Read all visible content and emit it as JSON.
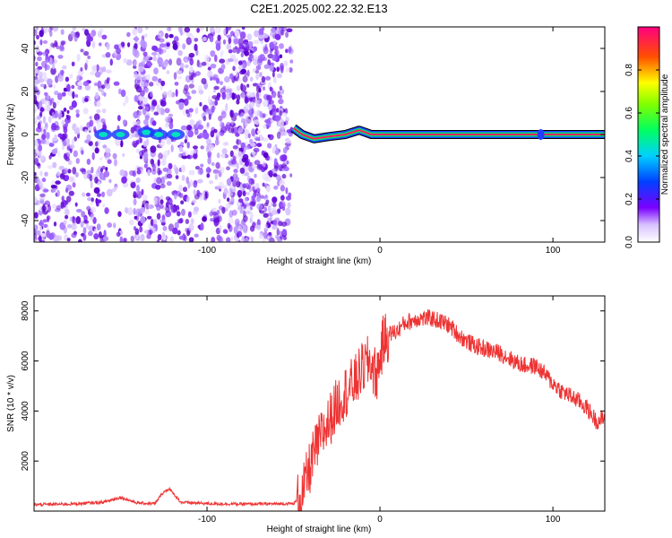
{
  "figure_title": "C2E1.2025.002.22.32.E13",
  "colorbar": {
    "label": "Normalized spectral amplitude",
    "ticks": [
      "0.0",
      "0.2",
      "0.4",
      "0.6",
      "0.8"
    ]
  },
  "chart_data": [
    {
      "type": "heatmap",
      "title": "",
      "xlabel": "Height of straight line (km)",
      "ylabel": "Frequency (Hz)",
      "xlim": [
        -200,
        130
      ],
      "ylim": [
        -50,
        50
      ],
      "x_ticks": [
        -100,
        0,
        100
      ],
      "y_ticks": [
        -40,
        -20,
        0,
        20,
        40
      ],
      "x_tick_labels": [
        "-100",
        "0",
        "100"
      ],
      "y_tick_labels": [
        "-40",
        "-20",
        "0",
        "20",
        "40"
      ],
      "color_range": [
        0,
        1
      ],
      "description_regions": [
        {
          "x_range": [
            -200,
            -51
          ],
          "content": "broadband noise, amplitude ~0.05-0.2"
        },
        {
          "x_range": [
            -51,
            130
          ],
          "content": "narrow line near 0 Hz, amplitude ~0.8-1.0"
        }
      ],
      "line_center_hz": [
        {
          "x": -50,
          "y": 3
        },
        {
          "x": -45,
          "y": 0
        },
        {
          "x": -38,
          "y": -2
        },
        {
          "x": -30,
          "y": -1
        },
        {
          "x": -20,
          "y": 0
        },
        {
          "x": -12,
          "y": 2
        },
        {
          "x": -5,
          "y": 0
        },
        {
          "x": 0,
          "y": 0
        },
        {
          "x": 130,
          "y": 0
        }
      ]
    },
    {
      "type": "line",
      "title": "",
      "xlabel": "Height of straight line (km)",
      "ylabel": "SNR (10 * v/v)",
      "xlim": [
        -200,
        130
      ],
      "ylim": [
        0,
        8600
      ],
      "x_ticks": [
        -100,
        0,
        100
      ],
      "y_ticks": [
        2000,
        4000,
        6000,
        8000
      ],
      "x_tick_labels": [
        "-100",
        "0",
        "100"
      ],
      "y_tick_labels": [
        "2000",
        "4000",
        "6000",
        "8000"
      ],
      "series": [
        {
          "color": "#ee3333",
          "x": [
            -200,
            -180,
            -160,
            -150,
            -140,
            -130,
            -126,
            -122,
            -115,
            -100,
            -80,
            -60,
            -50,
            -45,
            -42,
            -38,
            -34,
            -30,
            -26,
            -22,
            -18,
            -14,
            -10,
            -6,
            -2,
            2,
            6,
            10,
            14,
            18,
            22,
            26,
            30,
            34,
            38,
            42,
            46,
            50,
            55,
            60,
            65,
            70,
            75,
            80,
            85,
            90,
            95,
            100,
            105,
            110,
            115,
            120,
            125,
            130
          ],
          "y": [
            260,
            280,
            350,
            550,
            320,
            300,
            700,
            900,
            350,
            300,
            280,
            290,
            300,
            600,
            1400,
            2300,
            3000,
            3500,
            4100,
            4600,
            4900,
            5200,
            5700,
            6000,
            5400,
            6800,
            7100,
            7200,
            7500,
            7600,
            7700,
            7700,
            7700,
            7600,
            7500,
            7300,
            7000,
            6800,
            6600,
            6500,
            6400,
            6300,
            6100,
            5900,
            5800,
            5800,
            5500,
            5100,
            4800,
            4600,
            4400,
            4100,
            3600,
            3700
          ]
        }
      ]
    }
  ]
}
